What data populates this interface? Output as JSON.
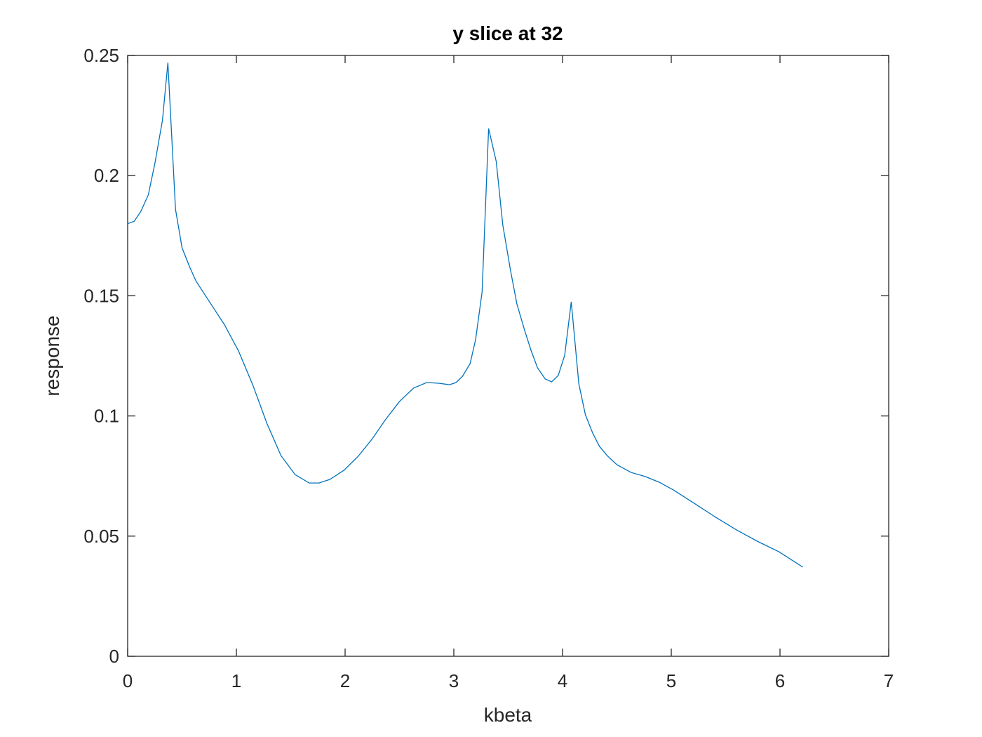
{
  "chart_data": {
    "type": "line",
    "title": "y slice at 32",
    "x_label": "kbeta",
    "y_label": "response",
    "x": [
      0,
      0.06,
      0.12,
      0.19,
      0.25,
      0.32,
      0.37,
      0.44,
      0.5,
      0.57,
      0.63,
      0.76,
      0.89,
      1.02,
      1.15,
      1.28,
      1.41,
      1.54,
      1.67,
      1.76,
      1.86,
      1.99,
      2.12,
      2.25,
      2.37,
      2.5,
      2.63,
      2.75,
      2.86,
      2.96,
      3.02,
      3.08,
      3.15,
      3.2,
      3.26,
      3.32,
      3.39,
      3.45,
      3.52,
      3.58,
      3.65,
      3.71,
      3.77,
      3.84,
      3.9,
      3.96,
      4.02,
      4.08,
      4.15,
      4.21,
      4.28,
      4.34,
      4.41,
      4.5,
      4.63,
      4.76,
      4.89,
      5.02,
      5.21,
      5.41,
      5.6,
      5.79,
      5.99,
      6.21
    ],
    "series": [
      {
        "color": "#0072bd",
        "values": [
          0.18,
          0.181,
          0.185,
          0.192,
          0.205,
          0.223,
          0.247,
          0.186,
          0.17,
          0.162,
          0.156,
          0.147,
          0.138,
          0.127,
          0.113,
          0.097,
          0.0835,
          0.0756,
          0.0721,
          0.0721,
          0.0736,
          0.0774,
          0.0832,
          0.0905,
          0.0984,
          0.106,
          0.1116,
          0.1139,
          0.1136,
          0.113,
          0.1139,
          0.1165,
          0.1218,
          0.1317,
          0.1516,
          0.2196,
          0.2059,
          0.1796,
          0.1609,
          0.1466,
          0.1358,
          0.1273,
          0.12,
          0.1154,
          0.1142,
          0.1168,
          0.1253,
          0.1475,
          0.1133,
          0.1005,
          0.0926,
          0.0873,
          0.0835,
          0.0797,
          0.0765,
          0.0748,
          0.0724,
          0.0692,
          0.0637,
          0.0578,
          0.0526,
          0.0479,
          0.0435,
          0.0371
        ]
      }
    ],
    "xlim": [
      0,
      7
    ],
    "xticks": [
      0,
      1,
      2,
      3,
      4,
      5,
      6,
      7
    ],
    "ylim": [
      0,
      0.25
    ],
    "yticks": [
      0,
      0.05,
      0.1,
      0.15,
      0.2,
      0.25
    ]
  }
}
